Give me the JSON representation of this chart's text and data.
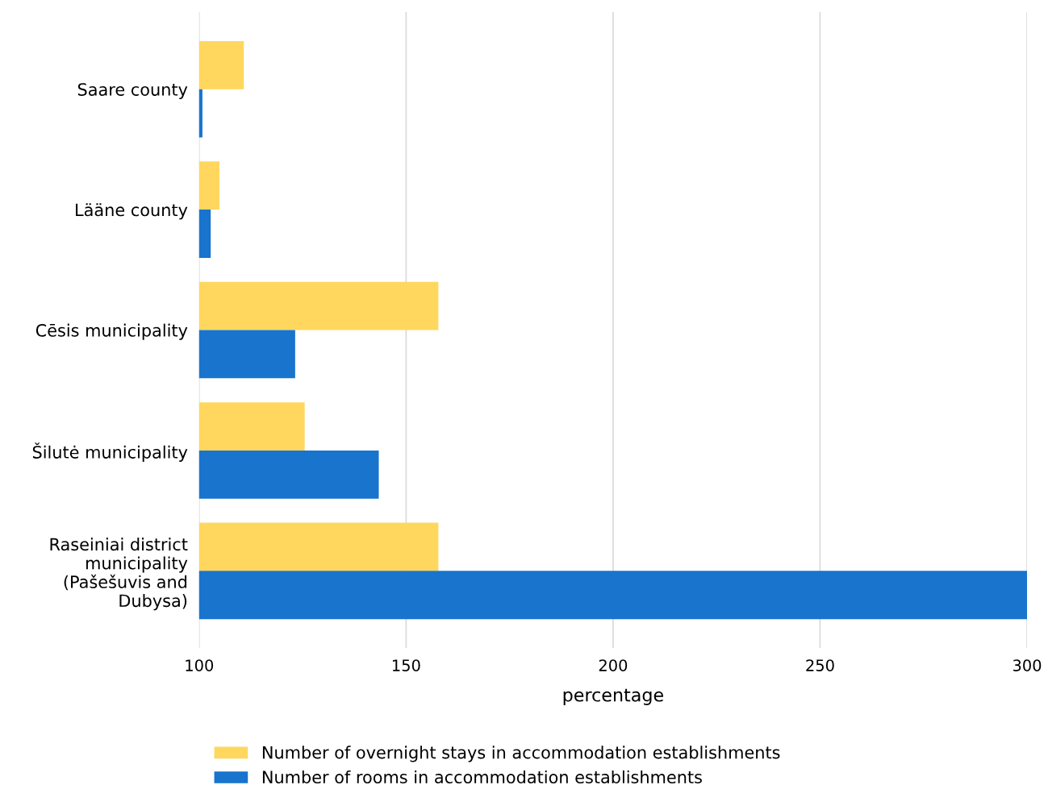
{
  "chart_data": {
    "type": "bar",
    "orientation": "horizontal",
    "xlabel": "percentage",
    "categories": [
      "Saare county",
      "Lääne county",
      "Cēsis municipality",
      "Šilutė municipality",
      "Raseiniai district\nmunicipality\n(Pašešuvis and\nDubysa)"
    ],
    "series": [
      {
        "name": "Number of overnight stays in accommodation establishments",
        "color": "#ffd75e",
        "values": [
          110.8,
          104.9,
          157.8,
          125.5,
          157.8
        ]
      },
      {
        "name": "Number of rooms in accommodation establishments",
        "color": "#1874cd",
        "values": [
          100.8,
          102.8,
          123.2,
          143.4,
          300
        ]
      }
    ],
    "xlim": [
      100,
      300
    ],
    "xticks": [
      100,
      150,
      200,
      250,
      300
    ],
    "grid": "x",
    "legend": "bottom"
  }
}
